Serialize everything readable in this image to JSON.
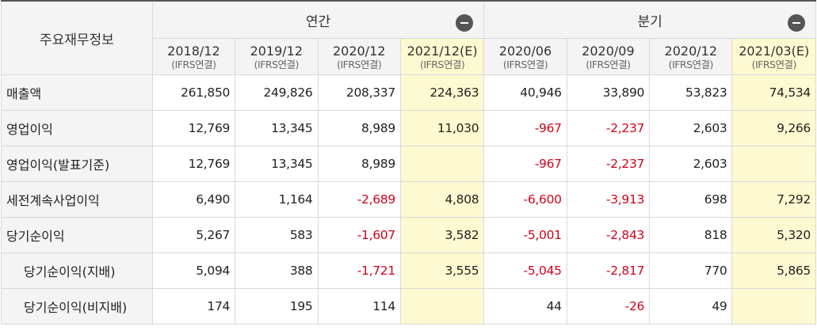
{
  "corner_label": "주요재무정보",
  "groups": [
    {
      "label": "연간",
      "collapse_icon": "minus-circle-icon"
    },
    {
      "label": "분기",
      "collapse_icon": "minus-circle-icon"
    }
  ],
  "columns": [
    {
      "period": "2018/12",
      "basis": "(IFRS연결)",
      "estimate": false
    },
    {
      "period": "2019/12",
      "basis": "(IFRS연결)",
      "estimate": false
    },
    {
      "period": "2020/12",
      "basis": "(IFRS연결)",
      "estimate": false
    },
    {
      "period": "2021/12(E)",
      "basis": "(IFRS연결)",
      "estimate": true
    },
    {
      "period": "2020/06",
      "basis": "(IFRS연결)",
      "estimate": false
    },
    {
      "period": "2020/09",
      "basis": "(IFRS연결)",
      "estimate": false
    },
    {
      "period": "2020/12",
      "basis": "(IFRS연결)",
      "estimate": false
    },
    {
      "period": "2021/03(E)",
      "basis": "(IFRS연결)",
      "estimate": true
    }
  ],
  "rows": [
    {
      "label": "매출액",
      "values": [
        "261,850",
        "249,826",
        "208,337",
        "224,363",
        "40,946",
        "33,890",
        "53,823",
        "74,534"
      ]
    },
    {
      "label": "영업이익",
      "values": [
        "12,769",
        "13,345",
        "8,989",
        "11,030",
        "-967",
        "-2,237",
        "2,603",
        "9,266"
      ]
    },
    {
      "label": "영업이익(발표기준)",
      "values": [
        "12,769",
        "13,345",
        "8,989",
        "",
        "-967",
        "-2,237",
        "2,603",
        ""
      ]
    },
    {
      "label": "세전계속사업이익",
      "values": [
        "6,490",
        "1,164",
        "-2,689",
        "4,808",
        "-6,600",
        "-3,913",
        "698",
        "7,292"
      ]
    },
    {
      "label": "당기순이익",
      "values": [
        "5,267",
        "583",
        "-1,607",
        "3,582",
        "-5,001",
        "-2,843",
        "818",
        "5,320"
      ]
    },
    {
      "label": "당기순이익(지배)",
      "values": [
        "5,094",
        "388",
        "-1,721",
        "3,555",
        "-5,045",
        "-2,817",
        "770",
        "5,865"
      ]
    },
    {
      "label": "당기순이익(비지배)",
      "values": [
        "174",
        "195",
        "114",
        "",
        "44",
        "-26",
        "49",
        ""
      ]
    }
  ],
  "colors": {
    "negative": "#d0021b",
    "estimate_bg": "#fdf9d0",
    "header_bg": "#f4f4f4",
    "border": "#d9d9d9"
  }
}
